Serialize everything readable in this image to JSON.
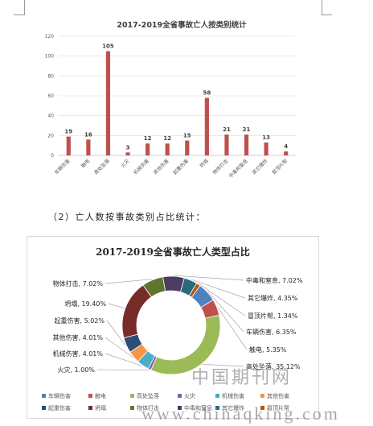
{
  "document": {
    "subheading": "（2）亡人数按事故类别占比统计：",
    "watermark_cn": "中国期刊网",
    "watermark_url": "www.chinaqking.com"
  },
  "chart_data": [
    {
      "type": "bar",
      "title": "2017-2019全省事故亡人按类别统计",
      "categories": [
        "车辆伤害",
        "触电",
        "高处坠落",
        "火灾",
        "机械伤害",
        "其他伤害",
        "起重伤害",
        "坍塌",
        "物体打击",
        "中毒和窒息",
        "其它爆炸",
        "冒顶片帮"
      ],
      "values": [
        19,
        16,
        105,
        3,
        12,
        12,
        15,
        58,
        21,
        21,
        13,
        4
      ],
      "ylim": [
        0,
        120
      ],
      "yticks": [
        0,
        20,
        40,
        60,
        80,
        100,
        120
      ],
      "grid": true,
      "data_labels": true,
      "legend": "none",
      "bar_color": "#C0504D"
    },
    {
      "type": "pie",
      "donut": true,
      "title": "2017-2019全省事故亡人类型占比",
      "categories": [
        "车辆伤害",
        "触电",
        "高处坠落",
        "火灾",
        "机械伤害",
        "其他伤害",
        "起重伤害",
        "坍塌",
        "物体打击",
        "中毒和窒息",
        "其它爆炸",
        "冒顶片帮"
      ],
      "values": [
        6.35,
        5.35,
        35.12,
        1.0,
        4.01,
        4.01,
        5.02,
        19.4,
        7.02,
        7.02,
        4.35,
        1.34
      ],
      "unit": "%",
      "data_labels": true,
      "legend": "bottom",
      "colors": [
        "#4F81BD",
        "#C0504D",
        "#9BBB59",
        "#8064A2",
        "#4BACC6",
        "#F79646",
        "#2C4D75",
        "#772C2A",
        "#5F7530",
        "#4D3B62",
        "#276A7C",
        "#B65708"
      ]
    }
  ]
}
